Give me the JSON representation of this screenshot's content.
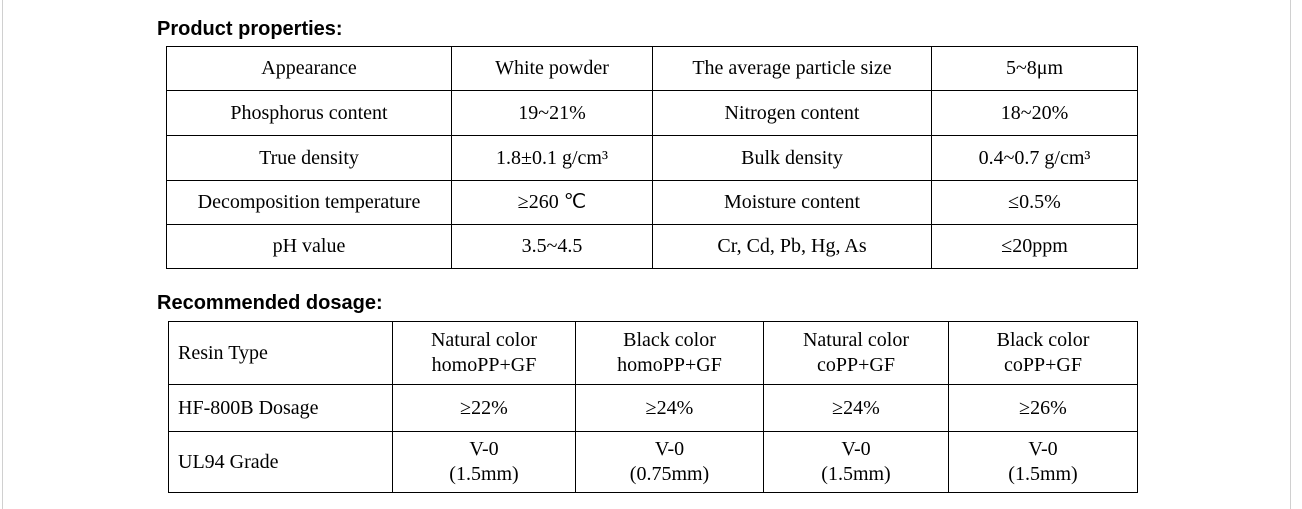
{
  "properties": {
    "title": "Product properties:",
    "rows": [
      [
        "Appearance",
        "White powder",
        "The average particle size",
        "5~8μm"
      ],
      [
        "Phosphorus content",
        "19~21%",
        "Nitrogen content",
        "18~20%"
      ],
      [
        "True density",
        "1.8±0.1 g/cm³",
        "Bulk density",
        "0.4~0.7 g/cm³"
      ],
      [
        "Decomposition temperature",
        "≥260 ℃",
        "Moisture content",
        "≤0.5%"
      ],
      [
        "pH value",
        "3.5~4.5",
        "Cr, Cd, Pb, Hg, As",
        "≤20ppm"
      ]
    ]
  },
  "dosage": {
    "title": "Recommended dosage:",
    "rows": [
      [
        "Resin Type",
        "Natural color\nhomoPP+GF",
        "Black color\nhomoPP+GF",
        "Natural color\ncoPP+GF",
        "Black color\ncoPP+GF"
      ],
      [
        "HF-800B Dosage",
        "≥22%",
        "≥24%",
        "≥24%",
        "≥26%"
      ],
      [
        "UL94 Grade",
        "V-0\n(1.5mm)",
        "V-0\n(0.75mm)",
        "V-0\n(1.5mm)",
        "V-0\n(1.5mm)"
      ]
    ]
  }
}
